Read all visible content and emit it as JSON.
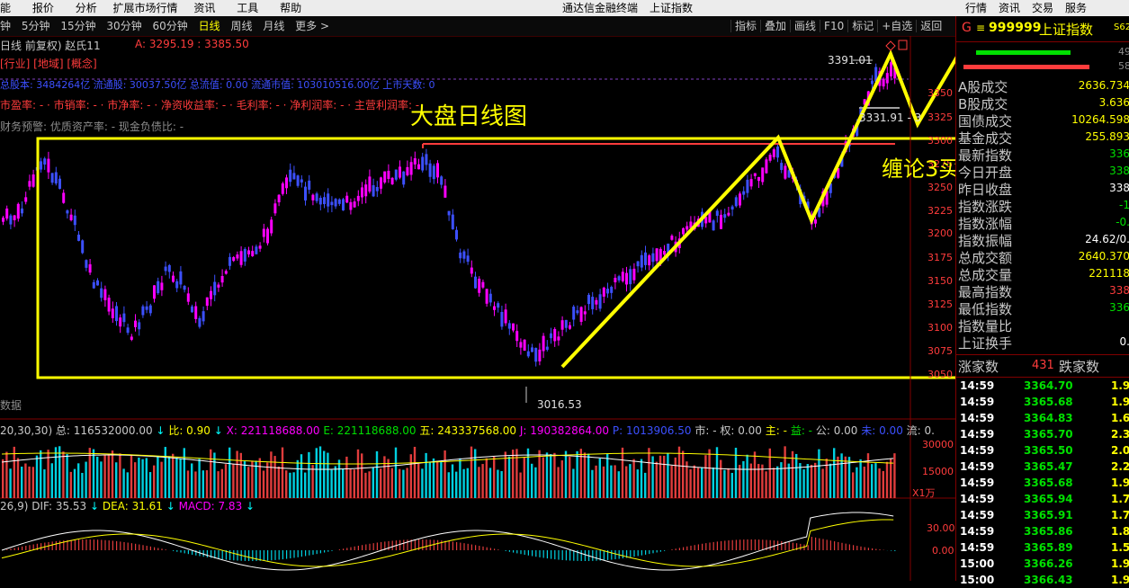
{
  "menubar": {
    "items": [
      "能",
      "报价",
      "分析",
      "扩展市场行情",
      "资讯",
      "工具",
      "帮助"
    ],
    "center_items": [
      "通达信金融终端",
      "上证指数"
    ],
    "right_items": [
      "行情",
      "资讯",
      "交易",
      "服务"
    ]
  },
  "periods": [
    "钟",
    "5分钟",
    "15分钟",
    "30分钟",
    "60分钟",
    "日线",
    "周线",
    "月线",
    "更多 >"
  ],
  "active_period": "日线",
  "toolbar_buttons": [
    "指标",
    "叠加",
    "画线",
    "F10",
    "标记",
    "+自选",
    "返回"
  ],
  "chart_header": {
    "title": "日线 前复权) 赵氏11",
    "ohlc_a": "A: 3295.19 : 3385.50",
    "tags": "[行业] [地域] [概念]",
    "info_line": "总股本: 3484264亿 流通股: 30037.50亿 总流值: 0.00 流通市值: 103010516.00亿 上市天数: 0",
    "ratios": [
      "市盈率: -",
      "市销率: -",
      "市净率: -",
      "净资收益率: -",
      "毛利率: -",
      "净利润率: -",
      "主营利润率: -"
    ],
    "finance": "财务预警: 优质资产率: - 现金负债比: -"
  },
  "annotations": {
    "big_title": "大盘日线图",
    "chanlun": "缠论3买",
    "high_label": "3391.01",
    "low_label": "3016.53",
    "mid_label": "3331.91 - 3",
    "data_label": "数据"
  },
  "price_axis": [
    "3350",
    "3325",
    "3300",
    "3275",
    "3250",
    "3225",
    "3200",
    "3175",
    "3150",
    "3125",
    "3100",
    "3075",
    "3050"
  ],
  "volume_header": {
    "ma": "20,30,30) 总: 116532000.00",
    "bi": "比: 0.90",
    "x": "X: 221118688.00",
    "e": "E: 221118688.00",
    "wu": "五: 243337568.00",
    "j": "J: 190382864.00",
    "p": "P: 1013906.50",
    "shi": "市: - 权: 0.00",
    "zhu": "主: -",
    "yi": "益: -",
    "gong": "公: 0.00",
    "wei": "未: 0.00",
    "liu": "流: 0."
  },
  "volume_axis": [
    "30000",
    "15000"
  ],
  "volume_unit": "X1万",
  "macd_header": {
    "params": "26,9) DIF: 35.53",
    "dea": "DEA: 31.61",
    "macd": "MACD: 7.83"
  },
  "macd_axis": [
    "30.00",
    "0.00"
  ],
  "right_panel": {
    "code_prefix": "G",
    "code": "999999",
    "name": "上证指数",
    "corner": "S62",
    "bar_nums": [
      "49",
      "58"
    ],
    "rows": [
      {
        "label": "A股成交",
        "value": "2636.734",
        "color": "#ffff00"
      },
      {
        "label": "B股成交",
        "value": "3.636",
        "color": "#ffff00"
      },
      {
        "label": "国债成交",
        "value": "10264.598",
        "color": "#ffff00"
      },
      {
        "label": "基金成交",
        "value": "255.893",
        "color": "#ffff00"
      },
      {
        "label": "最新指数",
        "value": "336",
        "color": "#00e000"
      },
      {
        "label": "今日开盘",
        "value": "338",
        "color": "#00e000"
      },
      {
        "label": "昨日收盘",
        "value": "338",
        "color": "#ffffff"
      },
      {
        "label": "指数涨跌",
        "value": "-1",
        "color": "#00e000"
      },
      {
        "label": "指数涨幅",
        "value": "-0.",
        "color": "#00e000"
      },
      {
        "label": "指数振幅",
        "value": "24.62/0.",
        "color": "#ffffff"
      },
      {
        "label": "总成交额",
        "value": "2640.370",
        "color": "#ffff00"
      },
      {
        "label": "总成交量",
        "value": "221118",
        "color": "#ffff00"
      },
      {
        "label": "最高指数",
        "value": "338",
        "color": "#ff3c3c"
      },
      {
        "label": "最低指数",
        "value": "336",
        "color": "#00e000"
      },
      {
        "label": "指数量比",
        "value": "",
        "color": "#ffffff"
      },
      {
        "label": "上证换手",
        "value": "0.",
        "color": "#ffffff"
      }
    ],
    "up_label": "涨家数",
    "up_value": "431",
    "down_label": "跌家数",
    "ticks": [
      {
        "t": "14:59",
        "p": "3364.70",
        "v": "1.9"
      },
      {
        "t": "14:59",
        "p": "3365.68",
        "v": "1.9"
      },
      {
        "t": "14:59",
        "p": "3364.83",
        "v": "1.6"
      },
      {
        "t": "14:59",
        "p": "3365.70",
        "v": "2.3"
      },
      {
        "t": "14:59",
        "p": "3365.50",
        "v": "2.0"
      },
      {
        "t": "14:59",
        "p": "3365.47",
        "v": "2.2"
      },
      {
        "t": "14:59",
        "p": "3365.68",
        "v": "1.9"
      },
      {
        "t": "14:59",
        "p": "3365.94",
        "v": "1.7"
      },
      {
        "t": "14:59",
        "p": "3365.91",
        "v": "1.7"
      },
      {
        "t": "14:59",
        "p": "3365.86",
        "v": "1.8"
      },
      {
        "t": "14:59",
        "p": "3365.89",
        "v": "1.5"
      },
      {
        "t": "15:00",
        "p": "3366.26",
        "v": "1.9"
      },
      {
        "t": "15:00",
        "p": "3366.43",
        "v": "1.9"
      }
    ]
  },
  "colors": {
    "up": "#ff00ff",
    "down": "#3c50ff",
    "annotation": "#ffff00",
    "axis": "#ff3c3c"
  }
}
